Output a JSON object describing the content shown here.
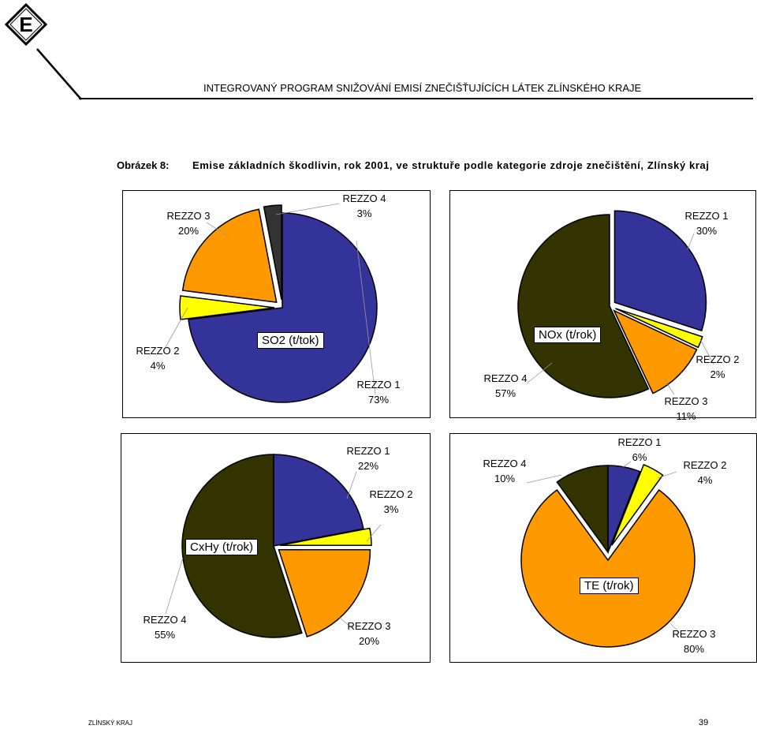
{
  "header": {
    "logo_letter": "E",
    "title": "INTEGROVANÝ PROGRAM SNIŽOVÁNÍ EMISÍ ZNEČIŠŤUJÍCÍCH LÁTEK ZLÍNSKÉHO KRAJE"
  },
  "caption": {
    "label": "Obrázek 8:",
    "text": "Emise základních škodlivin, rok 2001, ve struktuře podle kategorie zdroje znečištění, Zlínský kraj"
  },
  "colors": {
    "rezzo1": "#333399",
    "rezzo2": "#ffff00",
    "rezzo3": "#ff9900",
    "rezzo4_so2": "#333333",
    "rezzo4": "#333300"
  },
  "chart_data": [
    {
      "type": "pie",
      "title": "SO2 (t/tok)",
      "categories": [
        "REZZO 1",
        "REZZO 2",
        "REZZO 3",
        "REZZO 4"
      ],
      "values": [
        73,
        4,
        20,
        3
      ],
      "labels": [
        {
          "name": "REZZO 1",
          "pct": "73%"
        },
        {
          "name": "REZZO 2",
          "pct": "4%"
        },
        {
          "name": "REZZO 3",
          "pct": "20%"
        },
        {
          "name": "REZZO 4",
          "pct": "3%"
        }
      ]
    },
    {
      "type": "pie",
      "title": "NOx (t/rok)",
      "categories": [
        "REZZO 1",
        "REZZO 2",
        "REZZO 3",
        "REZZO 4"
      ],
      "values": [
        30,
        2,
        11,
        57
      ],
      "labels": [
        {
          "name": "REZZO 1",
          "pct": "30%"
        },
        {
          "name": "REZZO 2",
          "pct": "2%"
        },
        {
          "name": "REZZO 3",
          "pct": "11%"
        },
        {
          "name": "REZZO 4",
          "pct": "57%"
        }
      ]
    },
    {
      "type": "pie",
      "title": "CxHy (t/rok)",
      "categories": [
        "REZZO 1",
        "REZZO 2",
        "REZZO 3",
        "REZZO 4"
      ],
      "values": [
        22,
        3,
        20,
        55
      ],
      "labels": [
        {
          "name": "REZZO 1",
          "pct": "22%"
        },
        {
          "name": "REZZO 2",
          "pct": "3%"
        },
        {
          "name": "REZZO 3",
          "pct": "20%"
        },
        {
          "name": "REZZO 4",
          "pct": "55%"
        }
      ]
    },
    {
      "type": "pie",
      "title": "TE (t/rok)",
      "categories": [
        "REZZO 1",
        "REZZO 2",
        "REZZO 3",
        "REZZO 4"
      ],
      "values": [
        6,
        4,
        80,
        10
      ],
      "labels": [
        {
          "name": "REZZO 1",
          "pct": "6%"
        },
        {
          "name": "REZZO 2",
          "pct": "4%"
        },
        {
          "name": "REZZO 3",
          "pct": "80%"
        },
        {
          "name": "REZZO 4",
          "pct": "10%"
        }
      ]
    }
  ],
  "footer": {
    "left": "ZLÍNSKÝ KRAJ",
    "page_number": "39"
  }
}
